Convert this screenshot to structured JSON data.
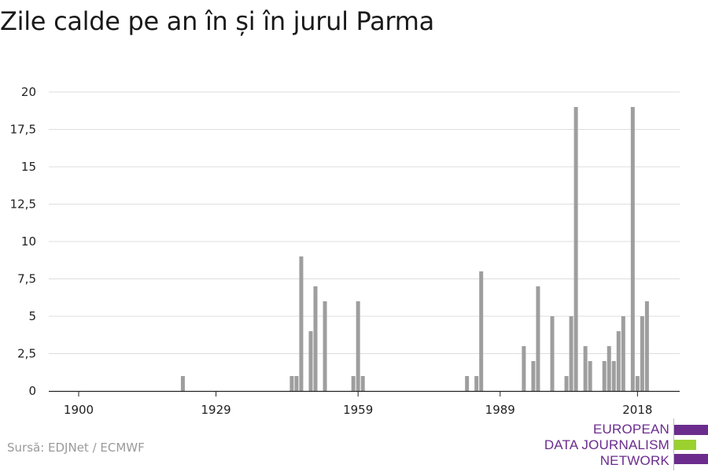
{
  "title": "Zile calde pe an în și în jurul Parma",
  "source": "Sursă: EDJNet / ECMWF",
  "logo": {
    "lines": [
      "EUROPEAN",
      "DATA JOURNALISM",
      "NETWORK"
    ],
    "colors": [
      "#6b2c8e",
      "#9ad12f",
      "#6b2c8e"
    ]
  },
  "chart_data": {
    "type": "bar",
    "title": "Zile calde pe an în și în jurul Parma",
    "xlabel": "",
    "ylabel": "",
    "x_ticks": [
      "1900",
      "1929",
      "1959",
      "1989",
      "2018"
    ],
    "x_range": [
      1900,
      2020
    ],
    "y_ticks": [
      "0",
      "2,5",
      "5",
      "7,5",
      "10",
      "12,5",
      "15",
      "17,5",
      "20"
    ],
    "ylim": [
      0,
      20
    ],
    "grid": true,
    "bar_color": "#9e9e9e",
    "points": [
      {
        "x": 1922,
        "y": 1
      },
      {
        "x": 1945,
        "y": 1
      },
      {
        "x": 1946,
        "y": 1
      },
      {
        "x": 1947,
        "y": 9
      },
      {
        "x": 1949,
        "y": 4
      },
      {
        "x": 1950,
        "y": 7
      },
      {
        "x": 1952,
        "y": 6
      },
      {
        "x": 1958,
        "y": 1
      },
      {
        "x": 1959,
        "y": 6
      },
      {
        "x": 1960,
        "y": 1
      },
      {
        "x": 1982,
        "y": 1
      },
      {
        "x": 1984,
        "y": 1
      },
      {
        "x": 1985,
        "y": 8
      },
      {
        "x": 1994,
        "y": 3
      },
      {
        "x": 1996,
        "y": 2
      },
      {
        "x": 1997,
        "y": 7
      },
      {
        "x": 2000,
        "y": 5
      },
      {
        "x": 2003,
        "y": 1
      },
      {
        "x": 2004,
        "y": 5
      },
      {
        "x": 2005,
        "y": 19
      },
      {
        "x": 2007,
        "y": 3
      },
      {
        "x": 2008,
        "y": 2
      },
      {
        "x": 2011,
        "y": 2
      },
      {
        "x": 2012,
        "y": 3
      },
      {
        "x": 2013,
        "y": 2
      },
      {
        "x": 2014,
        "y": 4
      },
      {
        "x": 2015,
        "y": 5
      },
      {
        "x": 2017,
        "y": 19
      },
      {
        "x": 2018,
        "y": 1
      },
      {
        "x": 2019,
        "y": 5
      },
      {
        "x": 2020,
        "y": 6
      }
    ]
  }
}
